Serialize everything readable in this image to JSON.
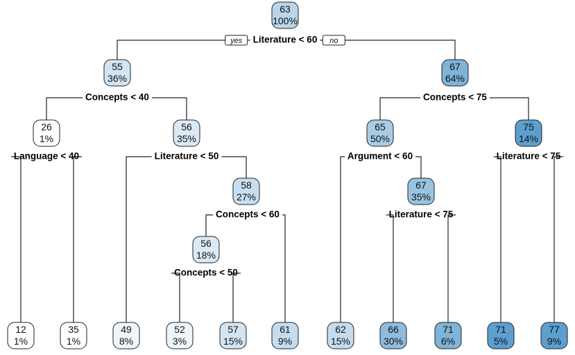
{
  "tree": {
    "yes_label": "yes",
    "no_label": "no",
    "nodes": [
      {
        "id": "n0",
        "value": "63",
        "percent": "100%",
        "fill": "#b9d5ea"
      },
      {
        "id": "n1",
        "value": "55",
        "percent": "36%",
        "fill": "#d3e5f3"
      },
      {
        "id": "n2",
        "value": "67",
        "percent": "64%",
        "fill": "#7fb3d9"
      },
      {
        "id": "n3",
        "value": "26",
        "percent": "1%",
        "fill": "#ffffff"
      },
      {
        "id": "n4",
        "value": "56",
        "percent": "35%",
        "fill": "#dbe9f5"
      },
      {
        "id": "n5",
        "value": "65",
        "percent": "50%",
        "fill": "#a9cce6"
      },
      {
        "id": "n6",
        "value": "75",
        "percent": "14%",
        "fill": "#5c9fcf"
      },
      {
        "id": "n7",
        "value": "58",
        "percent": "27%",
        "fill": "#c8def0"
      },
      {
        "id": "n8",
        "value": "67",
        "percent": "35%",
        "fill": "#9ac3e2"
      },
      {
        "id": "n9",
        "value": "56",
        "percent": "18%",
        "fill": "#dbe9f5"
      },
      {
        "id": "l1",
        "value": "12",
        "percent": "1%",
        "fill": "#ffffff"
      },
      {
        "id": "l2",
        "value": "35",
        "percent": "1%",
        "fill": "#ffffff"
      },
      {
        "id": "l3",
        "value": "49",
        "percent": "8%",
        "fill": "#eef5fb"
      },
      {
        "id": "l4",
        "value": "52",
        "percent": "3%",
        "fill": "#eef5fb"
      },
      {
        "id": "l5",
        "value": "57",
        "percent": "15%",
        "fill": "#d3e5f3"
      },
      {
        "id": "l6",
        "value": "61",
        "percent": "9%",
        "fill": "#c4dcef"
      },
      {
        "id": "l7",
        "value": "62",
        "percent": "15%",
        "fill": "#c4dcef"
      },
      {
        "id": "l8",
        "value": "66",
        "percent": "30%",
        "fill": "#8dbcdf"
      },
      {
        "id": "l9",
        "value": "71",
        "percent": "6%",
        "fill": "#7fb3d9"
      },
      {
        "id": "l10",
        "value": "71",
        "percent": "5%",
        "fill": "#5c9fcf"
      },
      {
        "id": "l11",
        "value": "77",
        "percent": "9%",
        "fill": "#5c9fcf"
      }
    ],
    "splits": [
      {
        "id": "s0",
        "label": "Literature < 60"
      },
      {
        "id": "s1",
        "label": "Concepts < 40"
      },
      {
        "id": "s2",
        "label": "Concepts < 75"
      },
      {
        "id": "s3",
        "label": "Language < 40"
      },
      {
        "id": "s4",
        "label": "Literature < 50"
      },
      {
        "id": "s5",
        "label": "Argument < 60"
      },
      {
        "id": "s6",
        "label": "Literature < 75"
      },
      {
        "id": "s7",
        "label": "Concepts < 60"
      },
      {
        "id": "s8",
        "label": "Literature < 75"
      },
      {
        "id": "s9",
        "label": "Concepts < 50"
      }
    ]
  }
}
